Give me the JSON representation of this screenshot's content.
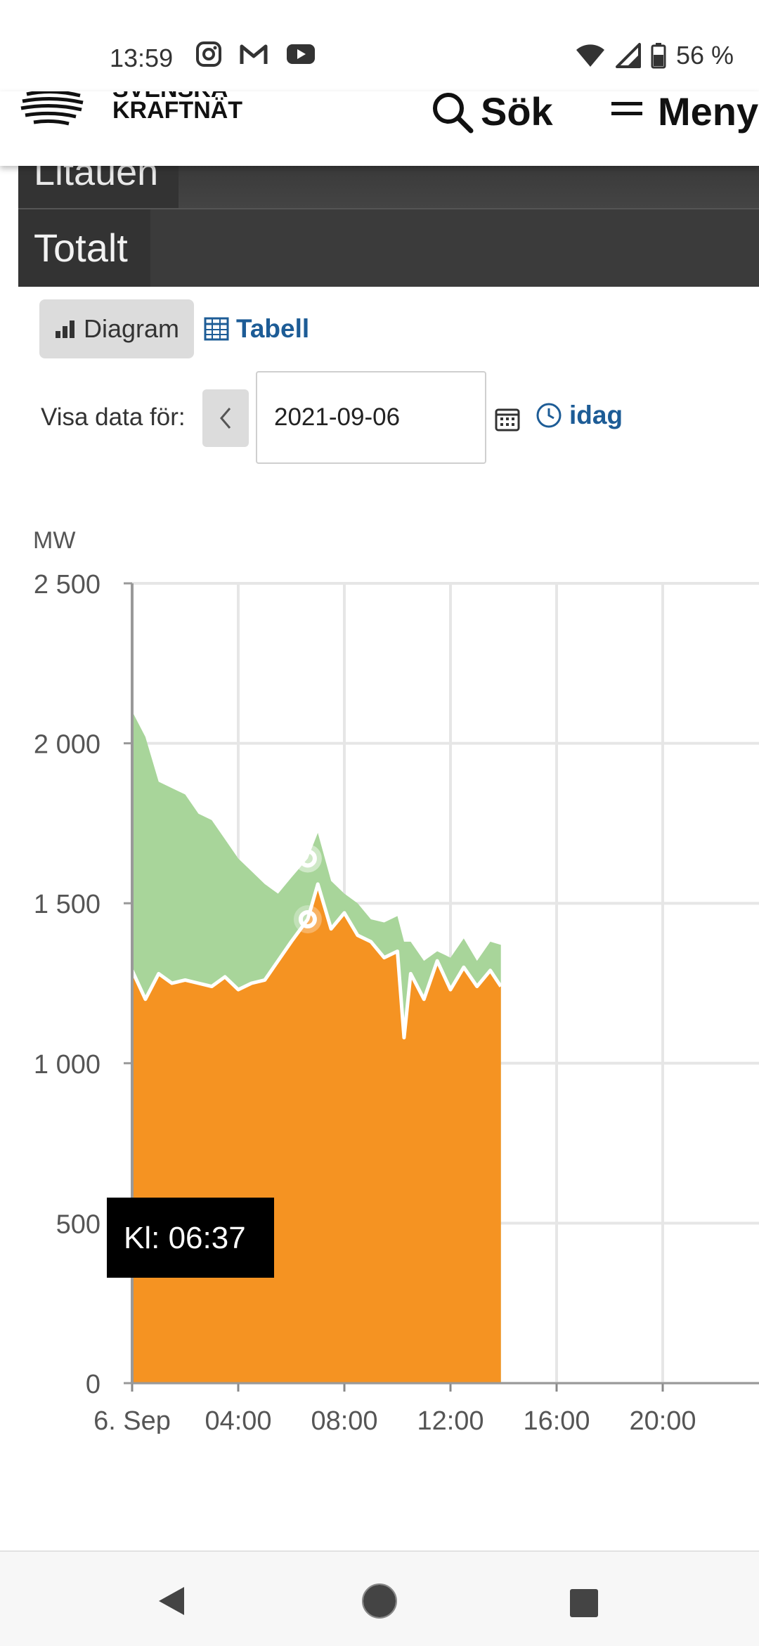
{
  "status_bar": {
    "time": "13:59",
    "battery": "56 %",
    "left_icons": [
      "instagram-icon",
      "gmail-icon",
      "youtube-icon"
    ],
    "right_icons": [
      "wifi-icon",
      "signal-icon",
      "battery-icon"
    ]
  },
  "header": {
    "logo_line1": "SVENSKA",
    "logo_line2": "KRAFTNÄT",
    "search_label": "Sök",
    "menu_label": "Meny"
  },
  "table_rows": {
    "row_partial": "Litauen",
    "row_total": "Totalt"
  },
  "view_toggle": {
    "diagram_label": "Diagram",
    "table_label": "Tabell"
  },
  "date_selector": {
    "label": "Visa data för:",
    "value": "2021-09-06",
    "today_label": "idag"
  },
  "colors": {
    "accent_link": "#1d5c96",
    "series_orange": "#f59322",
    "series_green": "#a8d59a",
    "header_dark": "#2d2d2d"
  },
  "tooltip": {
    "text": "Kl: 06:37"
  },
  "chart_data": {
    "type": "area",
    "unit_label": "MW",
    "ylim": [
      0,
      2500
    ],
    "xlim_hours": [
      0,
      24
    ],
    "y_ticks": [
      {
        "value": 0,
        "label": "0"
      },
      {
        "value": 500,
        "label": "500"
      },
      {
        "value": 1000,
        "label": "1 000"
      },
      {
        "value": 1500,
        "label": "1 500"
      },
      {
        "value": 2000,
        "label": "2 000"
      },
      {
        "value": 2500,
        "label": "2 500"
      }
    ],
    "x_ticks": [
      {
        "value": 0,
        "label": "6. Sep"
      },
      {
        "value": 4,
        "label": "04:00"
      },
      {
        "value": 8,
        "label": "08:00"
      },
      {
        "value": 12,
        "label": "12:00"
      },
      {
        "value": 16,
        "label": "16:00"
      },
      {
        "value": 20,
        "label": "20:00"
      }
    ],
    "x_hours": [
      0,
      0.5,
      1,
      1.5,
      2,
      2.5,
      3,
      3.5,
      4,
      4.5,
      5,
      5.5,
      6,
      6.62,
      7,
      7.5,
      8,
      8.5,
      9,
      9.5,
      10,
      10.25,
      10.5,
      11,
      11.5,
      12,
      12.5,
      13,
      13.5,
      13.9
    ],
    "series": [
      {
        "color": "#f59322",
        "values": [
          1290,
          1200,
          1280,
          1250,
          1260,
          1250,
          1240,
          1270,
          1230,
          1250,
          1260,
          1320,
          1380,
          1450,
          1560,
          1420,
          1470,
          1400,
          1380,
          1330,
          1350,
          1080,
          1280,
          1200,
          1320,
          1230,
          1300,
          1240,
          1290,
          1240
        ]
      },
      {
        "color": "#a8d59a",
        "values": [
          2100,
          2020,
          1880,
          1860,
          1840,
          1780,
          1760,
          1700,
          1640,
          1600,
          1560,
          1530,
          1580,
          1640,
          1720,
          1570,
          1530,
          1500,
          1450,
          1440,
          1460,
          1380,
          1380,
          1320,
          1350,
          1330,
          1390,
          1320,
          1380,
          1370
        ]
      }
    ],
    "hover_hour": 6.62,
    "hover_values": [
      1450,
      1640
    ],
    "grid": true
  }
}
